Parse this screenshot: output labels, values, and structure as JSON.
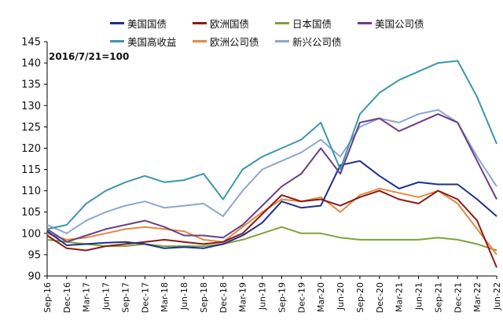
{
  "chart_data": {
    "type": "line",
    "annotation": "2016/7/21=100",
    "ylim": [
      90,
      145
    ],
    "yticks": [
      90,
      95,
      100,
      105,
      110,
      115,
      120,
      125,
      130,
      135,
      140,
      145
    ],
    "x_tick_labels": [
      "Sep-16",
      "Dec-16",
      "Mar-17",
      "Jun-17",
      "Sep-17",
      "Dec-17",
      "Mar-18",
      "Jun-18",
      "Sep-18",
      "Dec-18",
      "Mar-19",
      "Jun-19",
      "Sep-19",
      "Dec-19",
      "Mar-20",
      "Jun-20",
      "Sep-20",
      "Dec-20",
      "Mar-21",
      "Jun-21",
      "Sep-21",
      "Dec-21",
      "Mar-22",
      "Jun-22"
    ],
    "legend_order": [
      0,
      1,
      2,
      3,
      4,
      5,
      6
    ],
    "series": [
      {
        "name": "美国国债",
        "color": "#1f2f8c",
        "values": [
          100.5,
          97.2,
          97.5,
          97.8,
          98.0,
          97.5,
          96.5,
          96.8,
          96.5,
          97.5,
          99.5,
          102.5,
          107.5,
          106.0,
          106.5,
          116.0,
          117.0,
          113.5,
          110.5,
          112.0,
          111.5,
          111.5,
          108.0,
          104.0
        ]
      },
      {
        "name": "欧洲国债",
        "color": "#8b1a1a",
        "values": [
          99.5,
          96.5,
          96.0,
          97.0,
          97.5,
          98.0,
          98.5,
          98.0,
          97.5,
          98.0,
          100.0,
          104.5,
          109.0,
          107.5,
          108.0,
          106.5,
          108.5,
          110.0,
          108.0,
          107.0,
          110.0,
          108.0,
          103.0,
          92.0
        ]
      },
      {
        "name": "日本国债",
        "color": "#7fa23a",
        "values": [
          98.5,
          98.0,
          97.5,
          97.0,
          97.0,
          97.5,
          97.0,
          97.0,
          97.0,
          97.5,
          98.5,
          100.0,
          101.5,
          100.0,
          100.0,
          99.0,
          98.5,
          98.5,
          98.5,
          98.5,
          99.0,
          98.5,
          97.5,
          96.0
        ]
      },
      {
        "name": "美国公司债",
        "color": "#6b3f86",
        "values": [
          101.0,
          98.0,
          99.5,
          101.0,
          102.0,
          103.0,
          101.5,
          99.5,
          99.5,
          99.0,
          102.0,
          106.5,
          111.0,
          114.0,
          120.0,
          114.0,
          126.0,
          127.0,
          124.0,
          126.0,
          128.0,
          126.0,
          117.0,
          108.0
        ]
      },
      {
        "name": "美国高收益",
        "color": "#3a97ad",
        "values": [
          101.0,
          102.0,
          107.0,
          110.0,
          112.0,
          113.5,
          112.0,
          112.5,
          114.0,
          108.0,
          115.0,
          118.0,
          120.0,
          122.0,
          126.0,
          115.0,
          128.0,
          133.0,
          136.0,
          138.0,
          140.0,
          140.5,
          132.0,
          121.0
        ]
      },
      {
        "name": "欧洲公司债",
        "color": "#e38a3f",
        "values": [
          100.0,
          98.5,
          99.0,
          100.0,
          101.0,
          101.5,
          101.0,
          100.5,
          98.5,
          98.0,
          101.5,
          105.0,
          108.0,
          107.5,
          108.5,
          105.0,
          109.0,
          110.5,
          109.5,
          108.5,
          110.0,
          107.0,
          101.0,
          95.0
        ]
      },
      {
        "name": "新兴公司债",
        "color": "#8fa5cf",
        "values": [
          102.0,
          100.0,
          103.0,
          105.0,
          106.5,
          107.5,
          106.0,
          106.5,
          107.0,
          104.0,
          110.0,
          115.0,
          117.0,
          119.0,
          122.0,
          118.0,
          125.0,
          127.0,
          126.0,
          128.0,
          129.0,
          126.0,
          118.0,
          111.0
        ]
      }
    ]
  }
}
